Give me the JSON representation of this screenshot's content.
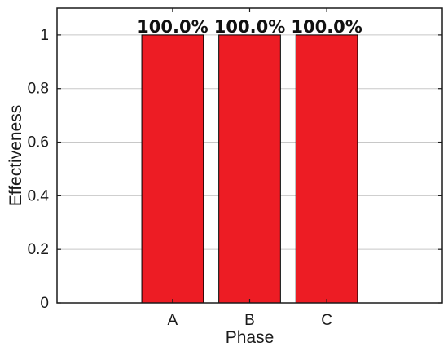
{
  "chart_data": {
    "type": "bar",
    "categories": [
      "A",
      "B",
      "C"
    ],
    "values": [
      1,
      1,
      1
    ],
    "data_labels": [
      "100.0%",
      "100.0%",
      "100.0%"
    ],
    "xlabel": "Phase",
    "ylabel": "Effectiveness",
    "ylim": [
      0,
      1.1
    ],
    "yticks": [
      0,
      0.2,
      0.4,
      0.6,
      0.8,
      1
    ],
    "ytick_labels": [
      "0",
      "0.2",
      "0.4",
      "0.6",
      "0.8",
      "1"
    ],
    "grid": true,
    "legend": "none",
    "bar_color": "#ed1c24",
    "bar_edge_color": "#000000",
    "grid_color": "#c8c8c8"
  }
}
